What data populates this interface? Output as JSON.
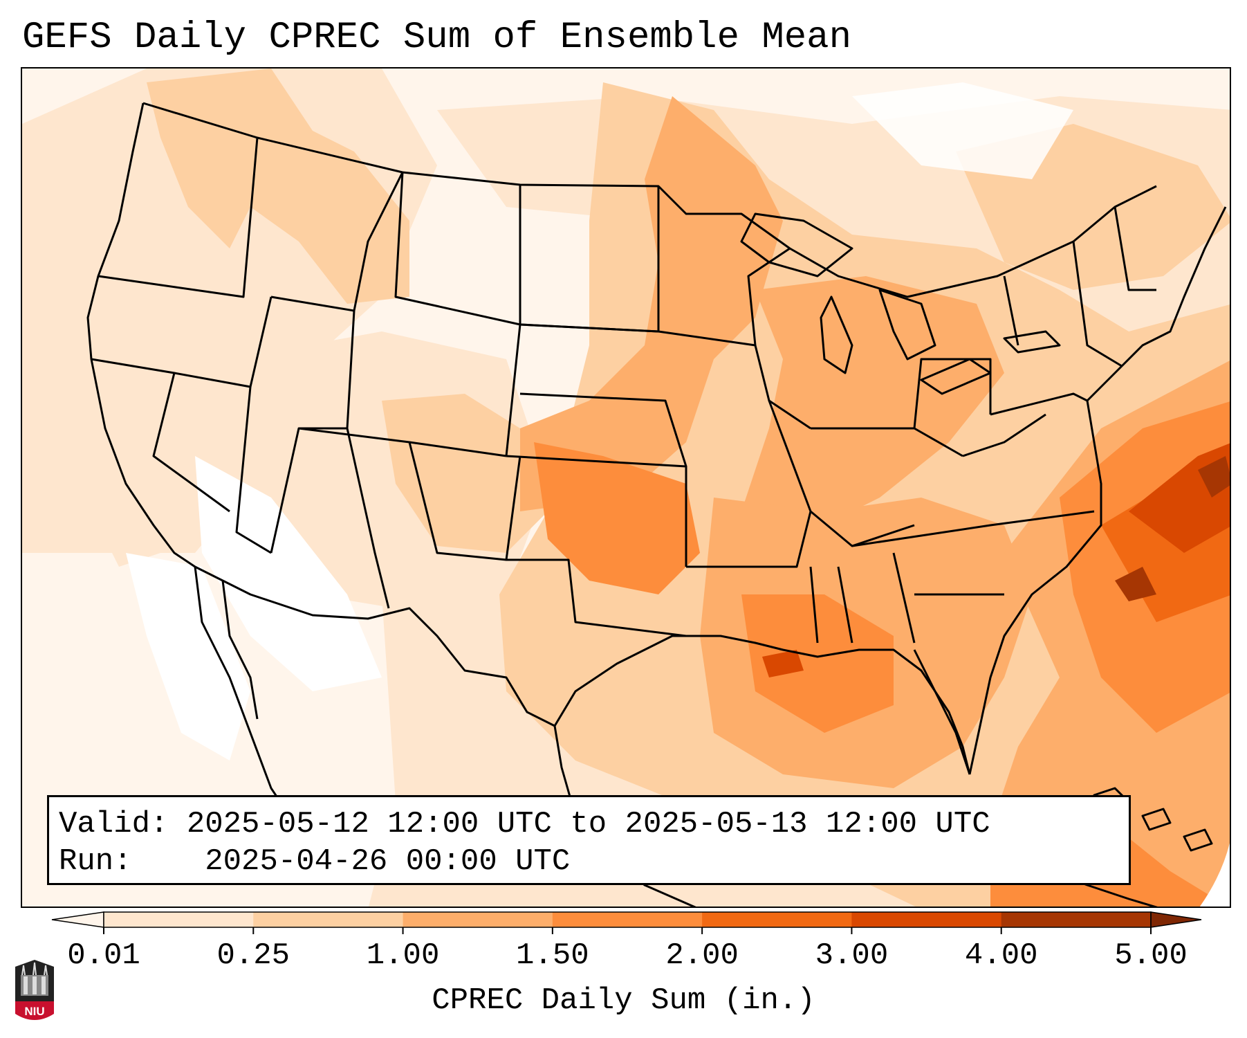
{
  "title": "GEFS Daily CPREC Sum of Ensemble Mean",
  "info": {
    "valid_label": "Valid:",
    "valid_value": "2025-05-12 12:00 UTC to 2025-05-13 12:00 UTC",
    "run_label": "Run:",
    "run_value": "2025-04-26 00:00 UTC"
  },
  "colorbar": {
    "label": "CPREC Daily Sum (in.)",
    "ticks": [
      "0.01",
      "0.25",
      "1.00",
      "1.50",
      "2.00",
      "3.00",
      "4.00",
      "5.00"
    ],
    "colors": [
      "#fff5eb",
      "#fee6ce",
      "#fdd0a2",
      "#fdae6b",
      "#fd8d3c",
      "#f16913",
      "#d94801",
      "#a63603",
      "#7f2704"
    ],
    "extend": "both"
  },
  "logo": {
    "text": "NIU",
    "colors": {
      "dark": "#222222",
      "red": "#c8102e"
    }
  },
  "map": {
    "domain": "Continental United States, southern Canada, Mexico, Gulf of Mexico and western Atlantic",
    "projection": "Lambert conformal",
    "features": [
      "state-borders",
      "country-borders",
      "coastlines",
      "lakes"
    ]
  }
}
